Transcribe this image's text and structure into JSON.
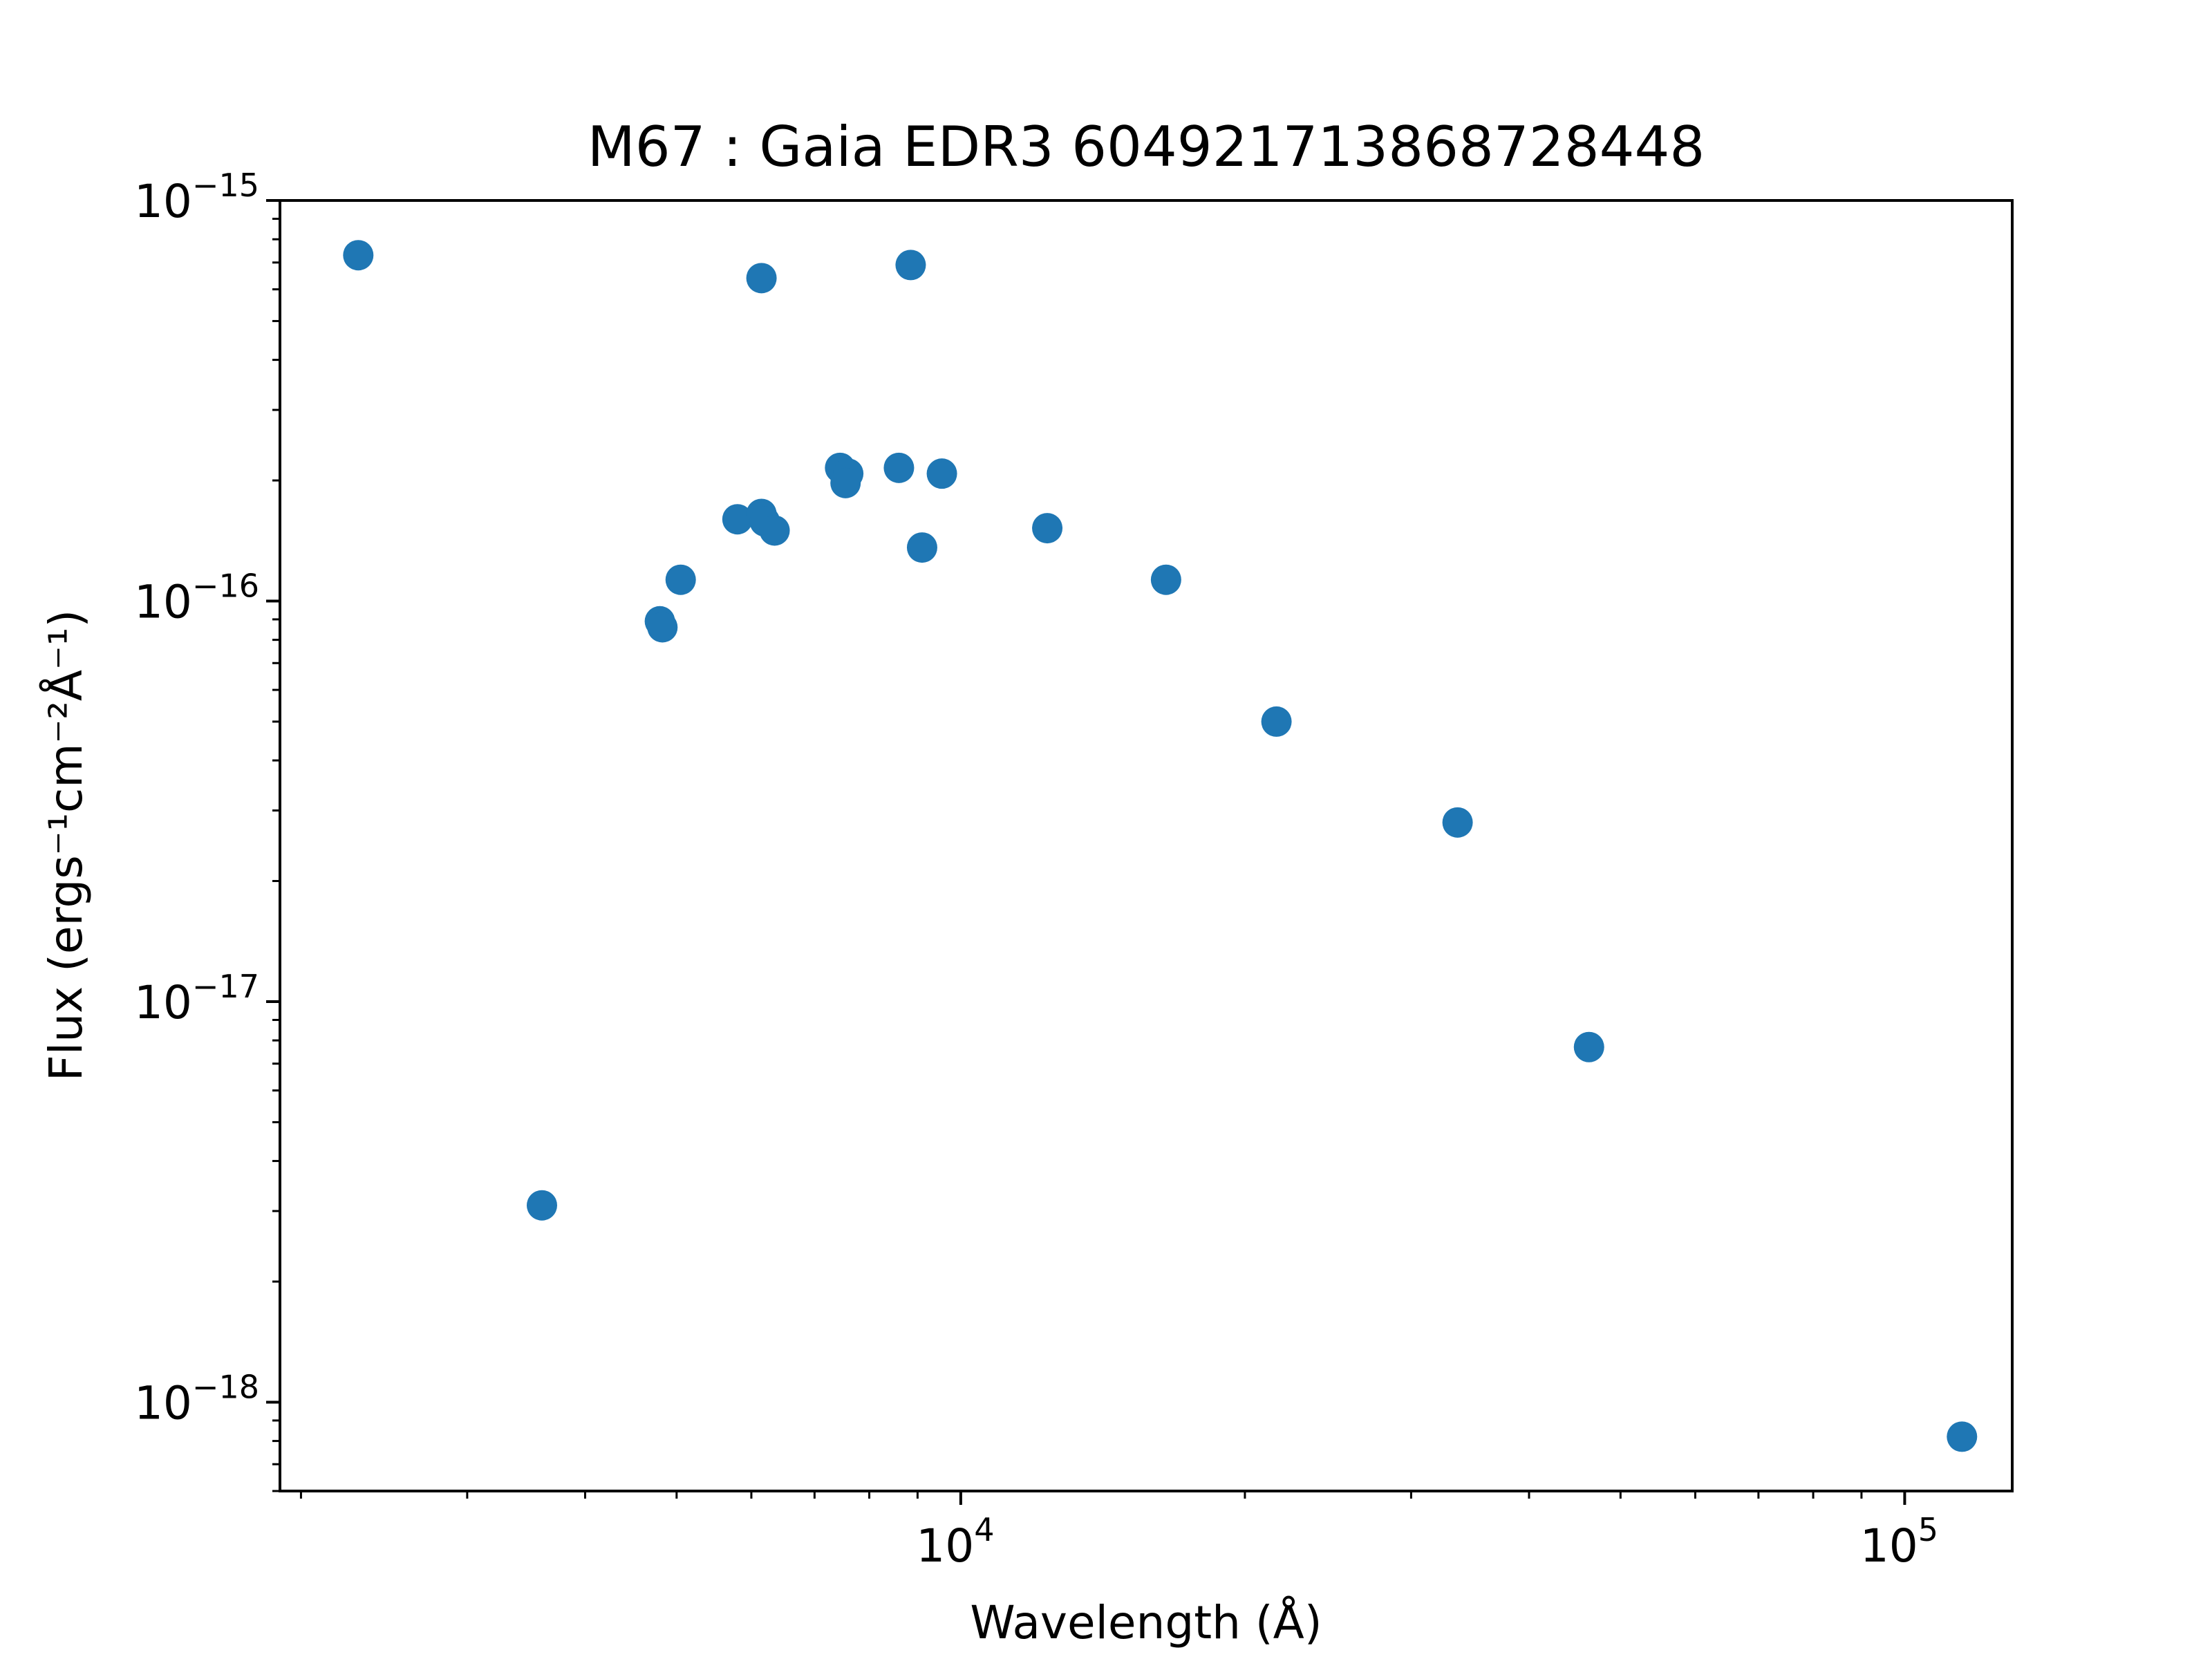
{
  "chart_data": {
    "type": "scatter",
    "title": "M67 : Gaia EDR3 604921713868728448",
    "xlabel": "Wavelength (Å)",
    "ylabel": "Flux (ergs⁻¹cm⁻²Å⁻¹)",
    "xscale": "log",
    "yscale": "log",
    "xlim": [
      1900,
      130000
    ],
    "ylim": [
      6e-19,
      1e-15
    ],
    "grid": false,
    "legend": "none",
    "color": "#1f77b4",
    "x_ticks": [
      {
        "value": 10000,
        "base": "10",
        "exp": "4"
      },
      {
        "value": 100000,
        "base": "10",
        "exp": "5"
      }
    ],
    "y_ticks": [
      {
        "value": 1e-15,
        "base": "10",
        "exp": "−15"
      },
      {
        "value": 1e-16,
        "base": "10",
        "exp": "−16"
      },
      {
        "value": 1e-17,
        "base": "10",
        "exp": "−17"
      },
      {
        "value": 1e-18,
        "base": "10",
        "exp": "−18"
      }
    ],
    "points": [
      {
        "x": 2300,
        "y": 7.3e-16
      },
      {
        "x": 3600,
        "y": 3.1e-18
      },
      {
        "x": 4800,
        "y": 8.9e-17
      },
      {
        "x": 4830,
        "y": 8.6e-17
      },
      {
        "x": 5050,
        "y": 1.13e-16
      },
      {
        "x": 5800,
        "y": 1.6e-16
      },
      {
        "x": 6150,
        "y": 1.65e-16
      },
      {
        "x": 6200,
        "y": 1.58e-16
      },
      {
        "x": 6350,
        "y": 1.5e-16
      },
      {
        "x": 6150,
        "y": 6.4e-16
      },
      {
        "x": 7450,
        "y": 2.15e-16
      },
      {
        "x": 7600,
        "y": 2.08e-16
      },
      {
        "x": 7550,
        "y": 1.97e-16
      },
      {
        "x": 8600,
        "y": 2.15e-16
      },
      {
        "x": 8850,
        "y": 6.9e-16
      },
      {
        "x": 9100,
        "y": 1.36e-16
      },
      {
        "x": 9550,
        "y": 2.08e-16
      },
      {
        "x": 12350,
        "y": 1.52e-16
      },
      {
        "x": 16500,
        "y": 1.13e-16
      },
      {
        "x": 21600,
        "y": 5e-17
      },
      {
        "x": 33600,
        "y": 2.8e-17
      },
      {
        "x": 46300,
        "y": 7.7e-18
      },
      {
        "x": 115000,
        "y": 8.2e-19
      }
    ]
  }
}
